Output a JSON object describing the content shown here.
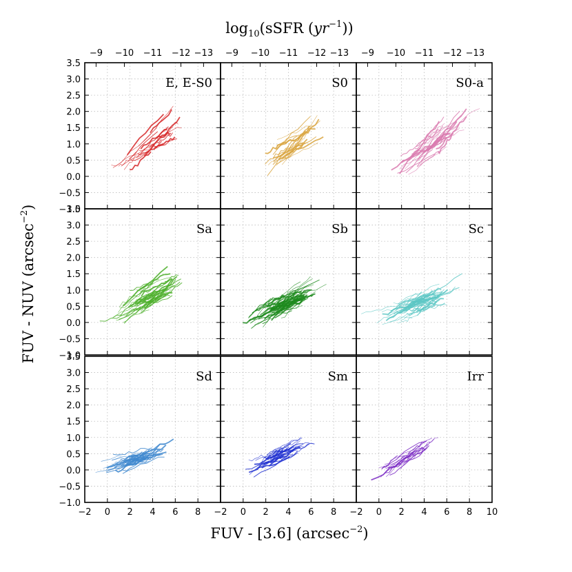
{
  "chart_data": {
    "type": "line",
    "figure": {
      "top_title": "log",
      "top_title_sub": "10",
      "top_title_rest": "(sSFR (",
      "top_title_var": "yr",
      "top_title_exp": "−1",
      "top_title_end": "))",
      "ylabel_main": "FUV - NUV (arcsec",
      "ylabel_exp": "−2",
      "ylabel_end": ")",
      "xlabel_main": "FUV - [3.6] (arcsec",
      "xlabel_exp": "−2",
      "xlabel_end": ")"
    },
    "x_axis": {
      "range": [
        -2,
        10
      ],
      "ticks": [
        -2,
        0,
        2,
        4,
        6,
        8
      ],
      "tick_labels": [
        "−2",
        "0",
        "2",
        "4",
        "6",
        "8"
      ],
      "last_tick": 10,
      "last_tick_label": "10"
    },
    "y_axis": {
      "range": [
        -1.0,
        3.5
      ],
      "ticks": [
        -1.0,
        -0.5,
        0.0,
        0.5,
        1.0,
        1.5,
        2.0,
        2.5,
        3.0,
        3.5
      ],
      "tick_labels": [
        "−1.0",
        "−0.5",
        "0.0",
        "0.5",
        "1.0",
        "1.5",
        "2.0",
        "2.5",
        "3.0",
        "3.5"
      ]
    },
    "top_axis": {
      "ticks_x_position": [
        -1,
        1.5,
        4.0,
        6.5,
        8.5
      ],
      "tick_labels": [
        "−9",
        "−10",
        "−11",
        "−12",
        "−13"
      ]
    },
    "panels": [
      {
        "label": "E, E-S0",
        "color": "#d62728",
        "center": [
          3.8,
          0.9
        ],
        "slope": 0.24,
        "spread": [
          1.8,
          0.45
        ],
        "n_tracks": 22
      },
      {
        "label": "S0",
        "color": "#d9a440",
        "center": [
          4.2,
          0.9
        ],
        "slope": 0.25,
        "spread": [
          1.6,
          0.45
        ],
        "n_tracks": 24
      },
      {
        "label": "S0-a",
        "color": "#d97aaf",
        "center": [
          4.8,
          1.0
        ],
        "slope": 0.25,
        "spread": [
          1.7,
          0.45
        ],
        "n_tracks": 32
      },
      {
        "label": "Sa",
        "color": "#4caf2a",
        "center": [
          3.7,
          0.75
        ],
        "slope": 0.18,
        "spread": [
          1.7,
          0.35
        ],
        "n_tracks": 46
      },
      {
        "label": "Sb",
        "color": "#1f8b1f",
        "center": [
          3.7,
          0.6
        ],
        "slope": 0.16,
        "spread": [
          1.8,
          0.3
        ],
        "n_tracks": 60
      },
      {
        "label": "Sc",
        "color": "#5cc7c4",
        "center": [
          3.5,
          0.6
        ],
        "slope": 0.13,
        "spread": [
          1.8,
          0.3
        ],
        "n_tracks": 56
      },
      {
        "label": "Sd",
        "color": "#3f88cf",
        "center": [
          2.5,
          0.35
        ],
        "slope": 0.1,
        "spread": [
          1.3,
          0.22
        ],
        "n_tracks": 40
      },
      {
        "label": "Sm",
        "color": "#1f2fd0",
        "center": [
          3.0,
          0.45
        ],
        "slope": 0.13,
        "spread": [
          1.3,
          0.25
        ],
        "n_tracks": 34
      },
      {
        "label": "Irr",
        "color": "#7b2cc4",
        "center": [
          2.2,
          0.35
        ],
        "slope": 0.17,
        "spread": [
          1.2,
          0.22
        ],
        "n_tracks": 22
      }
    ],
    "grid": true
  }
}
